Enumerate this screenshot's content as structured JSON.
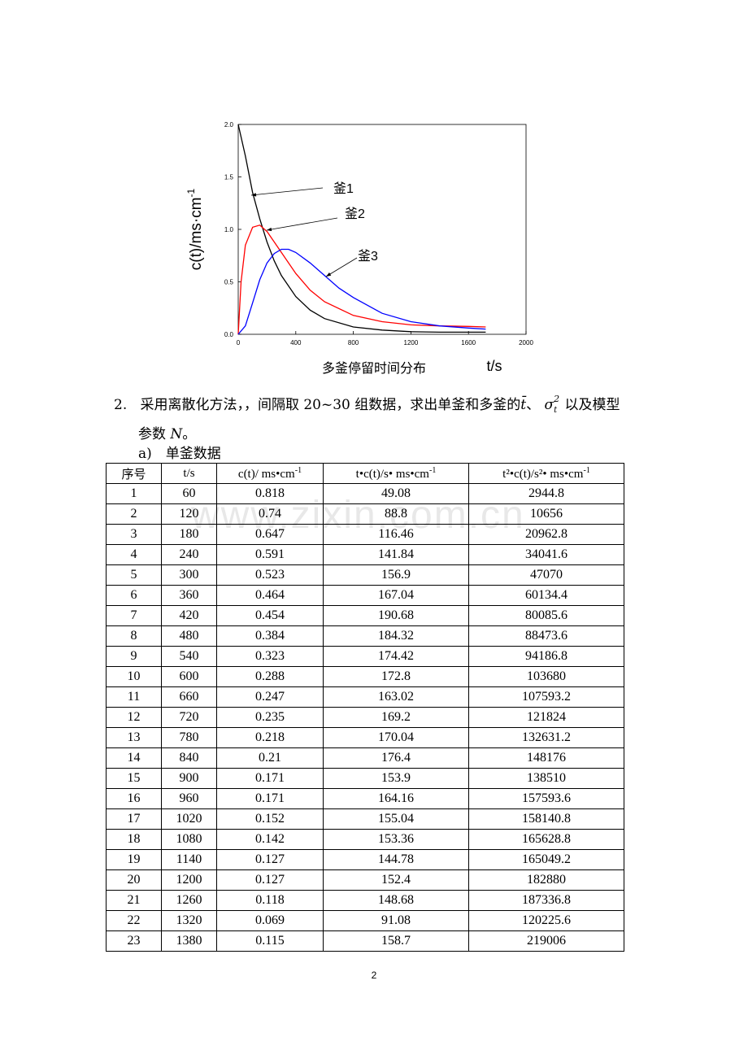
{
  "chart_data": {
    "type": "line",
    "ylabel": "c(t)/ms·cm",
    "ylabel_sup": "-1",
    "xlabel": "t/s",
    "caption": "多釜停留时间分布",
    "xlim": [
      0,
      2000
    ],
    "ylim": [
      0,
      2.0
    ],
    "xticks": [
      "0",
      "400",
      "800",
      "1200",
      "1600",
      "2000"
    ],
    "xtick_values": [
      0,
      400,
      800,
      1200,
      1600,
      2000
    ],
    "yticks": [
      "0.0",
      "0.5",
      "1.0",
      "1.5",
      "2.0"
    ],
    "ytick_values": [
      0,
      0.5,
      1.0,
      1.5,
      2.0
    ],
    "grid": false,
    "series": [
      {
        "name": "釜1",
        "color": "#000000",
        "x": [
          0,
          50,
          100,
          150,
          200,
          250,
          300,
          400,
          500,
          600,
          800,
          1000,
          1200,
          1400,
          1600,
          1720
        ],
        "y": [
          2.0,
          1.7,
          1.35,
          1.1,
          0.88,
          0.7,
          0.56,
          0.36,
          0.23,
          0.15,
          0.07,
          0.04,
          0.025,
          0.02,
          0.02,
          0.02
        ]
      },
      {
        "name": "釜2",
        "color": "#ff0000",
        "x": [
          0,
          20,
          50,
          100,
          150,
          200,
          250,
          300,
          400,
          500,
          600,
          800,
          1000,
          1200,
          1400,
          1600,
          1720
        ],
        "y": [
          0.0,
          0.5,
          0.85,
          1.02,
          1.04,
          0.98,
          0.88,
          0.78,
          0.58,
          0.42,
          0.31,
          0.18,
          0.12,
          0.09,
          0.08,
          0.075,
          0.07
        ]
      },
      {
        "name": "釜3",
        "color": "#0000ff",
        "x": [
          0,
          50,
          100,
          150,
          200,
          250,
          300,
          350,
          400,
          500,
          600,
          700,
          800,
          1000,
          1200,
          1400,
          1600,
          1720
        ],
        "y": [
          0.0,
          0.08,
          0.3,
          0.52,
          0.68,
          0.77,
          0.81,
          0.81,
          0.78,
          0.68,
          0.56,
          0.44,
          0.35,
          0.2,
          0.12,
          0.08,
          0.06,
          0.05
        ]
      }
    ],
    "annotations": [
      "釜1",
      "釜2",
      "釜3"
    ]
  },
  "paragraph": {
    "item_number": "2.",
    "text": "采用离散化方法，，间隔取 20~30 组数据，求出单釜和多釜的",
    "math_t": "t̄",
    "sep": "、",
    "math_sigma": "σ",
    "math_sigma_sub": "t",
    "math_sigma_sup": "2",
    "text_tail": "以及模型",
    "line2_prefix": "参数 ",
    "line2_var": "N",
    "line2_suffix": "。"
  },
  "subheading": "a)　单釜数据",
  "table": {
    "headers": [
      "序号",
      "t/s",
      "c(t)/ ms•cm",
      "t•c(t)/s• ms•cm",
      "t²•c(t)/s²• ms•cm"
    ],
    "header_sup": "-1",
    "rows": [
      [
        "1",
        "60",
        "0.818",
        "49.08",
        "2944.8"
      ],
      [
        "2",
        "120",
        "0.74",
        "88.8",
        "10656"
      ],
      [
        "3",
        "180",
        "0.647",
        "116.46",
        "20962.8"
      ],
      [
        "4",
        "240",
        "0.591",
        "141.84",
        "34041.6"
      ],
      [
        "5",
        "300",
        "0.523",
        "156.9",
        "47070"
      ],
      [
        "6",
        "360",
        "0.464",
        "167.04",
        "60134.4"
      ],
      [
        "7",
        "420",
        "0.454",
        "190.68",
        "80085.6"
      ],
      [
        "8",
        "480",
        "0.384",
        "184.32",
        "88473.6"
      ],
      [
        "9",
        "540",
        "0.323",
        "174.42",
        "94186.8"
      ],
      [
        "10",
        "600",
        "0.288",
        "172.8",
        "103680"
      ],
      [
        "11",
        "660",
        "0.247",
        "163.02",
        "107593.2"
      ],
      [
        "12",
        "720",
        "0.235",
        "169.2",
        "121824"
      ],
      [
        "13",
        "780",
        "0.218",
        "170.04",
        "132631.2"
      ],
      [
        "14",
        "840",
        "0.21",
        "176.4",
        "148176"
      ],
      [
        "15",
        "900",
        "0.171",
        "153.9",
        "138510"
      ],
      [
        "16",
        "960",
        "0.171",
        "164.16",
        "157593.6"
      ],
      [
        "17",
        "1020",
        "0.152",
        "155.04",
        "158140.8"
      ],
      [
        "18",
        "1080",
        "0.142",
        "153.36",
        "165628.8"
      ],
      [
        "19",
        "1140",
        "0.127",
        "144.78",
        "165049.2"
      ],
      [
        "20",
        "1200",
        "0.127",
        "152.4",
        "182880"
      ],
      [
        "21",
        "1260",
        "0.118",
        "148.68",
        "187336.8"
      ],
      [
        "22",
        "1320",
        "0.069",
        "91.08",
        "120225.6"
      ],
      [
        "23",
        "1380",
        "0.115",
        "158.7",
        "219006"
      ]
    ]
  },
  "watermark": "www.zixin.com.cn",
  "page_number": "2"
}
